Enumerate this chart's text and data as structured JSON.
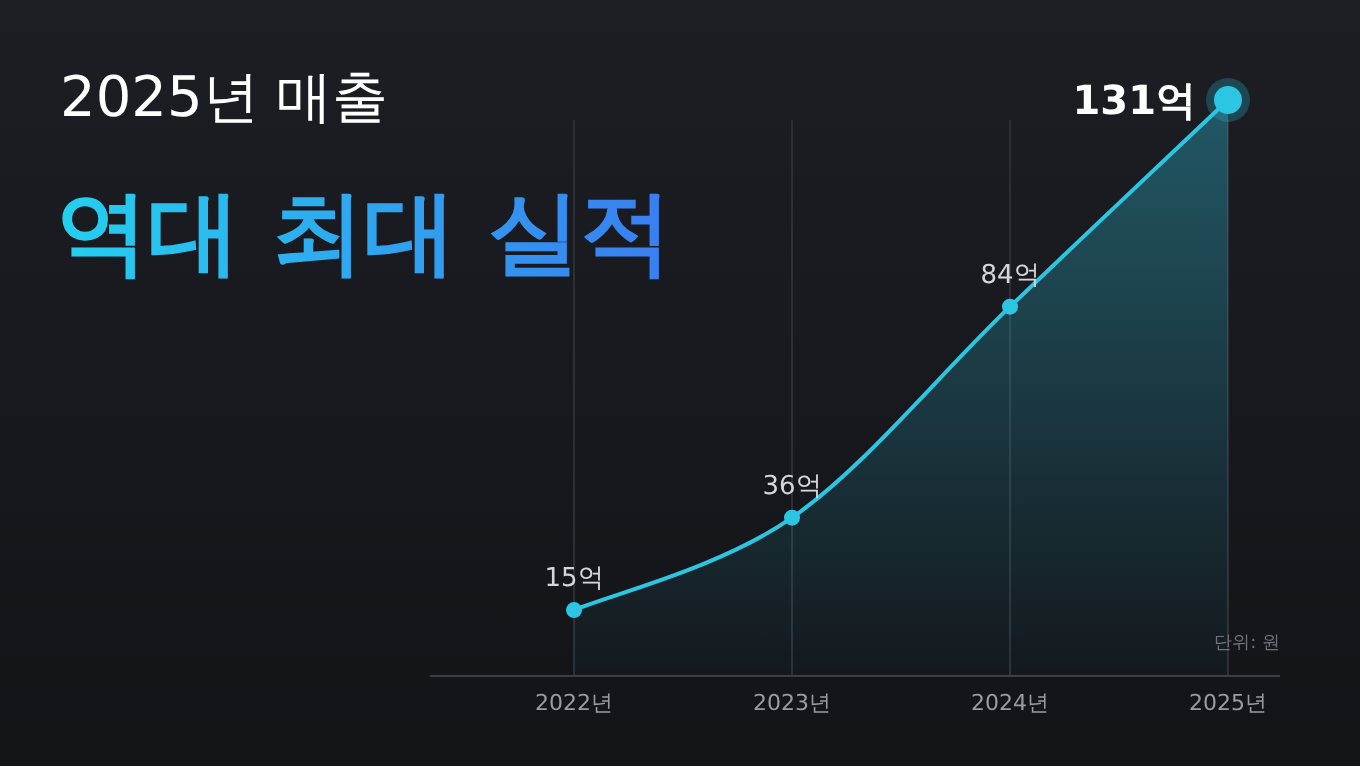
{
  "chart_data": {
    "type": "area",
    "title": "2025년 매출",
    "subtitle": "역대 최대 실적",
    "categories": [
      "2022년",
      "2023년",
      "2024년",
      "2025년"
    ],
    "values": [
      15,
      36,
      84,
      131
    ],
    "value_labels": [
      "15억",
      "36억",
      "84억",
      "131억"
    ],
    "color": "#2cc6e2",
    "marker": "circle",
    "grid": "x",
    "annotations": [
      "단위: 원"
    ]
  }
}
